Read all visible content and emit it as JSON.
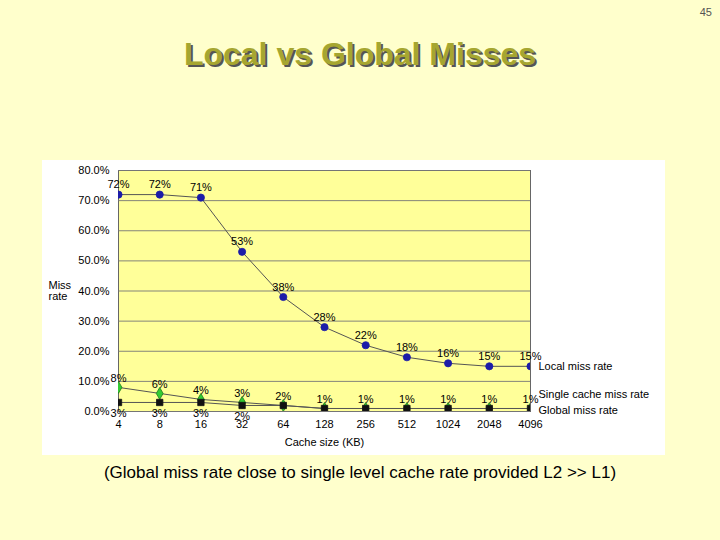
{
  "page_number": "45",
  "title": "Local vs Global Misses",
  "caption": "(Global miss rate close to single level cache rate provided L2 >> L1)",
  "chart_data": {
    "type": "line",
    "x_label": "Cache size (KB)",
    "y_label": "Miss rate",
    "x": [
      4,
      8,
      16,
      32,
      64,
      128,
      256,
      512,
      1024,
      2048,
      4096
    ],
    "log": "x",
    "xlim": [
      4,
      4096
    ],
    "xticks": [
      4,
      8,
      16,
      32,
      64,
      128,
      256,
      512,
      1024,
      2048,
      4096
    ],
    "ylim": [
      0,
      80
    ],
    "yticks": [
      {
        "value": 0,
        "label": "0.0%"
      },
      {
        "value": 10,
        "label": "10.0%"
      },
      {
        "value": 20,
        "label": "20.0%"
      },
      {
        "value": 30,
        "label": "30.0%"
      },
      {
        "value": 40,
        "label": "40.0%"
      },
      {
        "value": 50,
        "label": "50.0%"
      },
      {
        "value": 60,
        "label": "60.0%"
      },
      {
        "value": 70,
        "label": "70.0%"
      },
      {
        "value": 80,
        "label": "80.0%"
      }
    ],
    "grid": true,
    "data_labels": true,
    "legend": "right",
    "series": [
      {
        "name": "Local miss rate",
        "color": "#1c1ca8",
        "marker": "circle",
        "values": [
          72,
          72,
          71,
          53,
          38,
          28,
          22,
          18,
          16,
          15,
          15
        ],
        "value_labels": [
          "72%",
          "72%",
          "71%",
          "53%",
          "38%",
          "28%",
          "22%",
          "18%",
          "16%",
          "15%",
          "15%"
        ]
      },
      {
        "name": "Single cache miss rate",
        "color": "#33cc33",
        "marker": "diamond",
        "values": [
          8,
          6,
          4,
          3,
          2,
          1,
          1,
          1,
          1,
          1,
          1
        ],
        "value_labels": [
          "8%",
          "6%",
          "4%",
          "3%",
          "2%",
          "1%",
          "1%",
          "1%",
          "1%",
          "1%",
          "1%"
        ]
      },
      {
        "name": "Global miss rate",
        "color": "#111111",
        "marker": "square",
        "values": [
          3,
          3,
          3,
          2,
          2,
          1,
          1,
          1,
          1,
          1,
          1
        ],
        "value_labels": [
          "3%",
          "3%",
          "3%",
          "2%",
          null,
          null,
          null,
          null,
          null,
          null,
          null
        ]
      }
    ]
  }
}
